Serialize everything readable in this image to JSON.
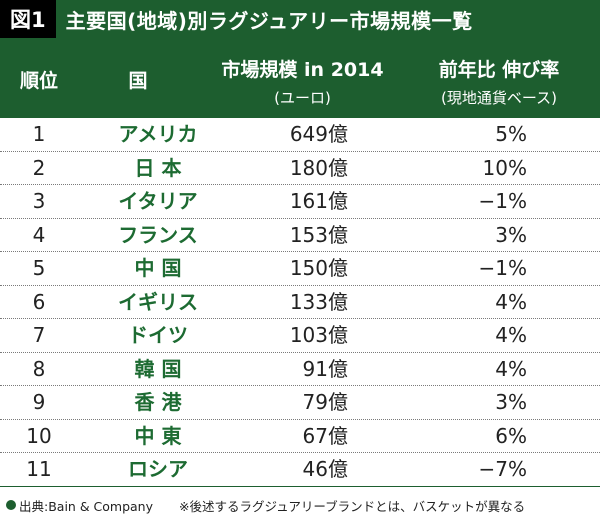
{
  "title": {
    "badge": "図1",
    "text": "主要国(地域)別ラグジュアリー市場規模一覧"
  },
  "header": {
    "rank": "順位",
    "country": "国",
    "market": "市場規模 in 2014",
    "market_sub": "(ユーロ)",
    "growth": "前年比 伸び率",
    "growth_sub": "(現地通貨ベース)"
  },
  "rows": [
    {
      "rank": "1",
      "country": "アメリカ",
      "market": "649億",
      "growth": "5%"
    },
    {
      "rank": "2",
      "country": "日 本",
      "market": "180億",
      "growth": "10%"
    },
    {
      "rank": "3",
      "country": "イタリア",
      "market": "161億",
      "growth": "−1%"
    },
    {
      "rank": "4",
      "country": "フランス",
      "market": "153億",
      "growth": "3%"
    },
    {
      "rank": "5",
      "country": "中 国",
      "market": "150億",
      "growth": "−1%"
    },
    {
      "rank": "6",
      "country": "イギリス",
      "market": "133億",
      "growth": "4%"
    },
    {
      "rank": "7",
      "country": "ドイツ",
      "market": "103億",
      "growth": "4%"
    },
    {
      "rank": "8",
      "country": "韓 国",
      "market": "91億",
      "growth": "4%"
    },
    {
      "rank": "9",
      "country": "香 港",
      "market": "79億",
      "growth": "3%"
    },
    {
      "rank": "10",
      "country": "中 東",
      "market": "67億",
      "growth": "6%"
    },
    {
      "rank": "11",
      "country": "ロシア",
      "market": "46億",
      "growth": "−7%"
    }
  ],
  "footer": {
    "source": "出典:Bain & Company",
    "note": "※後述するラグジュアリーブランドとは、バスケットが異なる"
  }
}
